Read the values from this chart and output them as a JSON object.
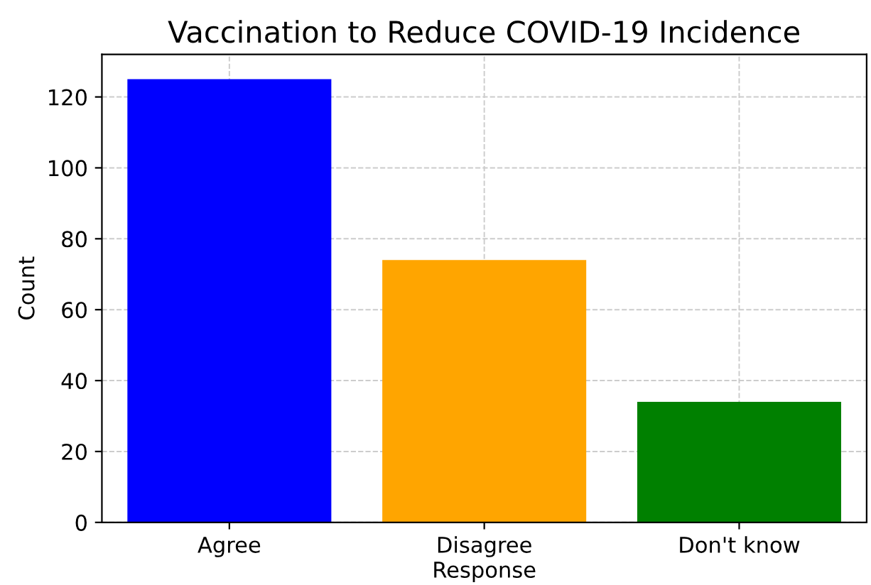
{
  "chart_data": {
    "type": "bar",
    "title": "Vaccination to Reduce COVID-19 Incidence",
    "xlabel": "Response",
    "ylabel": "Count",
    "categories": [
      "Agree",
      "Disagree",
      "Don't know"
    ],
    "values": [
      125,
      74,
      34
    ],
    "colors": [
      "#0000ff",
      "#ffa500",
      "#008000"
    ],
    "ylim": [
      0,
      132
    ],
    "yticks": [
      0,
      20,
      40,
      60,
      80,
      100,
      120
    ],
    "grid": true
  }
}
